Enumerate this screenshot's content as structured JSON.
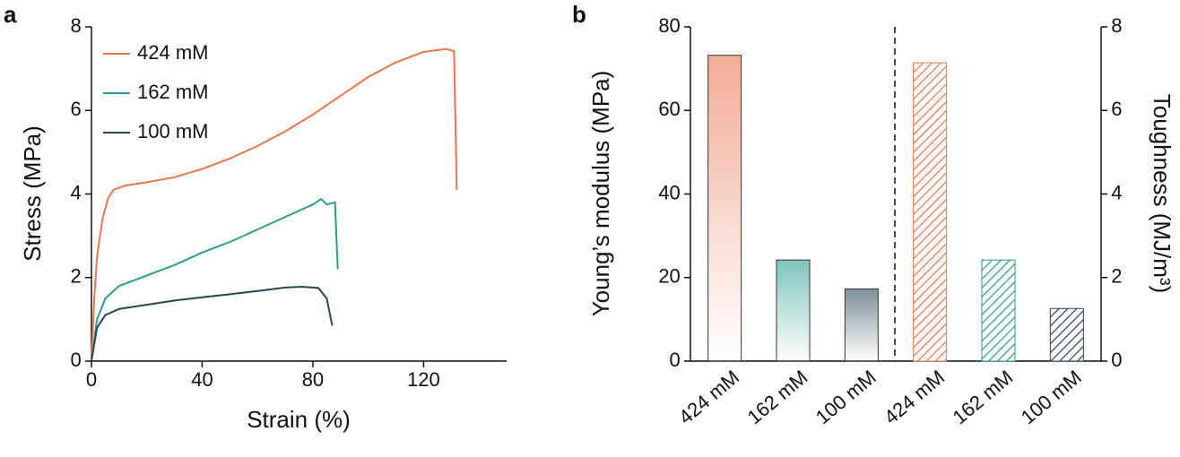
{
  "chart_data": [
    {
      "type": "line",
      "panel_label": "a",
      "xlabel": "Strain (%)",
      "ylabel": "Stress (MPa)",
      "xlim": [
        0,
        150
      ],
      "xticks": [
        0,
        40,
        80,
        120
      ],
      "ylim": [
        0,
        8
      ],
      "yticks": [
        0,
        2,
        4,
        6,
        8
      ],
      "legend": "top-left",
      "series": [
        {
          "name": "424 mM",
          "color": "#e8764f",
          "x": [
            0,
            1,
            2,
            4,
            6,
            8,
            12,
            20,
            30,
            40,
            50,
            60,
            70,
            80,
            90,
            100,
            110,
            120,
            128,
            131,
            132
          ],
          "values": [
            0,
            1.5,
            2.5,
            3.4,
            3.9,
            4.1,
            4.2,
            4.28,
            4.4,
            4.6,
            4.85,
            5.15,
            5.5,
            5.9,
            6.35,
            6.8,
            7.15,
            7.4,
            7.47,
            7.42,
            4.1
          ]
        },
        {
          "name": "162 mM",
          "color": "#2a9d8f",
          "x": [
            0,
            2,
            5,
            10,
            20,
            30,
            40,
            50,
            60,
            70,
            80,
            83,
            85,
            88,
            89
          ],
          "values": [
            0,
            1.0,
            1.5,
            1.8,
            2.05,
            2.3,
            2.6,
            2.85,
            3.15,
            3.45,
            3.75,
            3.88,
            3.75,
            3.8,
            2.2
          ]
        },
        {
          "name": "100 mM",
          "color": "#264653",
          "x": [
            0,
            2,
            5,
            10,
            20,
            30,
            40,
            50,
            60,
            70,
            76,
            82,
            85,
            87
          ],
          "values": [
            0,
            0.8,
            1.1,
            1.25,
            1.35,
            1.45,
            1.53,
            1.6,
            1.68,
            1.76,
            1.78,
            1.75,
            1.5,
            0.85
          ]
        }
      ]
    },
    {
      "type": "bar",
      "panel_label": "b",
      "ylabel": "Young’s modulus (MPa)",
      "y2label": "Toughness (MJ/m³)",
      "categories": [
        "424 mM",
        "162 mM",
        "100 mM",
        "424 mM",
        "162 mM",
        "100 mM"
      ],
      "colors": [
        "#e8764f",
        "#2a9d8f",
        "#264653",
        "#e8764f",
        "#2a9d8f",
        "#264653"
      ],
      "ylim": [
        0,
        80
      ],
      "yticks": [
        0,
        20,
        40,
        60,
        80
      ],
      "y2lim": [
        0,
        8
      ],
      "y2ticks": [
        0,
        2,
        4,
        6,
        8
      ],
      "series": [
        {
          "fill": "gradient",
          "values": [
            73.2,
            24.2,
            17.3,
            null,
            null,
            null
          ]
        },
        {
          "fill": "hatch",
          "axis": "y2",
          "values": [
            null,
            null,
            null,
            7.14,
            2.42,
            1.26
          ]
        }
      ]
    }
  ]
}
